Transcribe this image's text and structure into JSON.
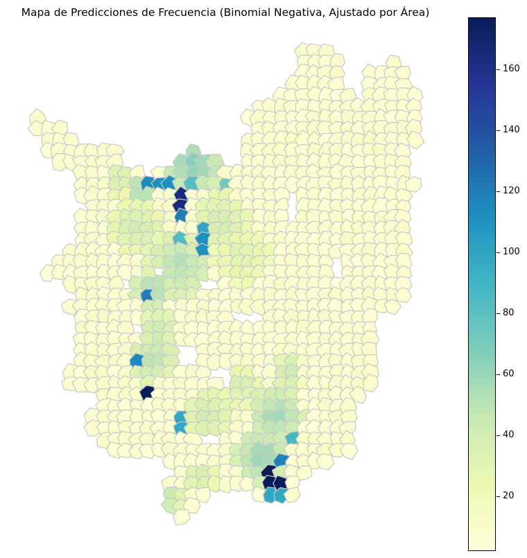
{
  "title": "Mapa de Predicciones de Frecuencia (Binomial Negativa, Ajustado por Área)",
  "colormap": [
    "#ffffd9",
    "#edf8b1",
    "#c7e9b4",
    "#7fcdbb",
    "#41b6c4",
    "#1d91c0",
    "#225ea8",
    "#253494",
    "#081d58"
  ],
  "colorbar": {
    "min": 2,
    "max": 177,
    "ticks": [
      "20",
      "40",
      "60",
      "80",
      "100",
      "120",
      "140",
      "160"
    ]
  },
  "border_color": "#c8c8c8"
}
